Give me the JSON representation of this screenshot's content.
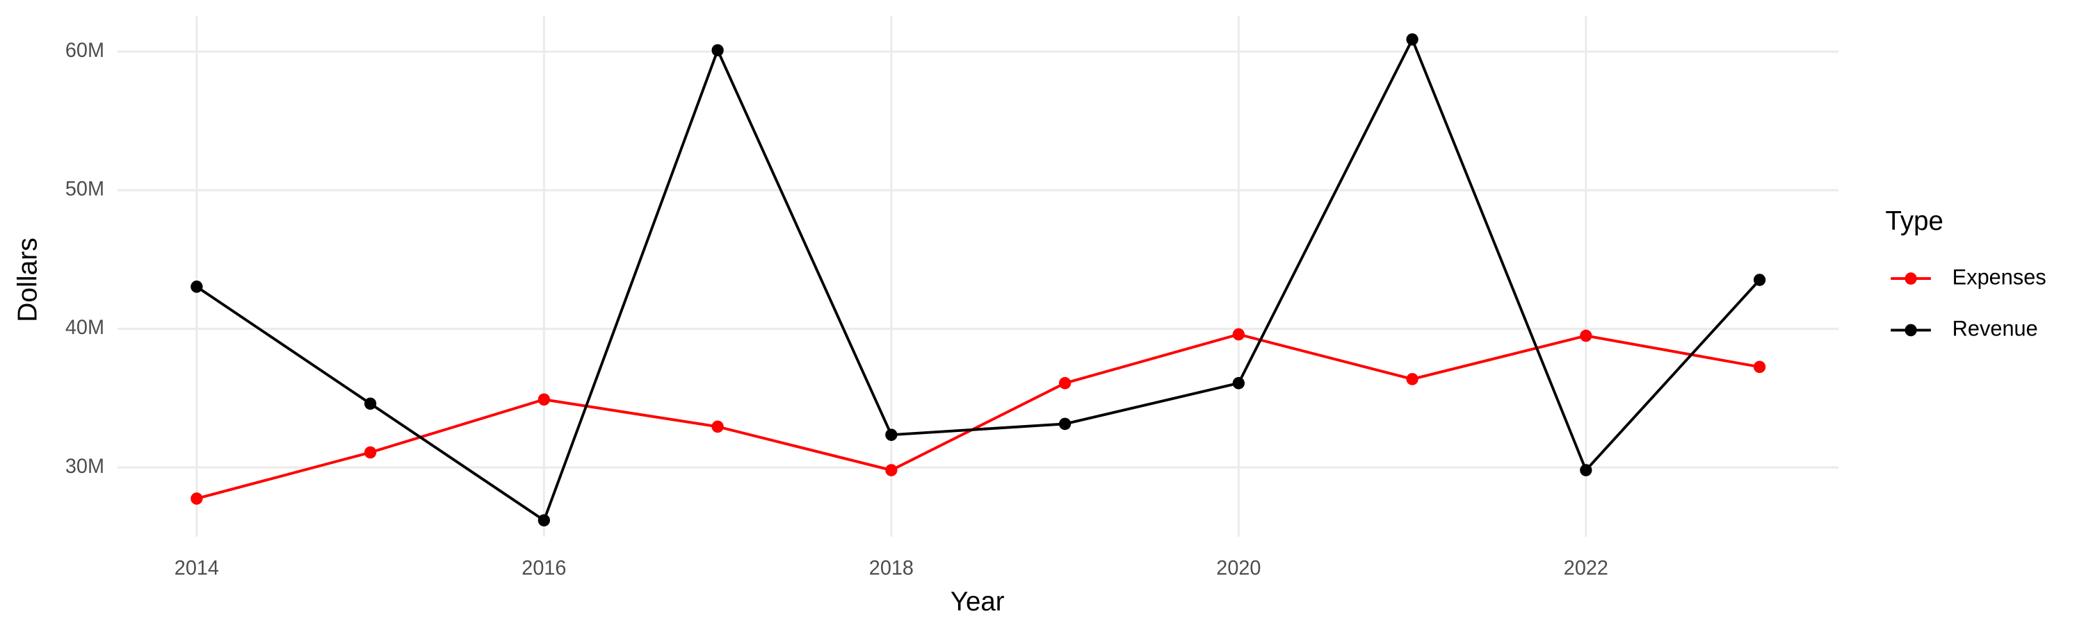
{
  "chart_data": {
    "type": "line",
    "x_label": "Year",
    "y_label": "Dollars",
    "legend_title": "Type",
    "legend_position": "right",
    "grid": true,
    "x": [
      2014,
      2015,
      2016,
      2017,
      2018,
      2019,
      2020,
      2021,
      2022,
      2023
    ],
    "xlim": [
      2013.545,
      2023.455
    ],
    "xticks": [
      2014,
      2016,
      2018,
      2020,
      2022
    ],
    "ylim": [
      25000000,
      62550000
    ],
    "yticks": [
      {
        "value": 30000000,
        "label": "30M"
      },
      {
        "value": 40000000,
        "label": "40M"
      },
      {
        "value": 50000000,
        "label": "50M"
      },
      {
        "value": 60000000,
        "label": "60M"
      }
    ],
    "series": [
      {
        "name": "Expenses",
        "color": "#ff0000",
        "values": [
          27750000,
          31080000,
          34900000,
          32940000,
          29800000,
          36080000,
          39600000,
          36370000,
          39500000,
          37250000
        ]
      },
      {
        "name": "Revenue",
        "color": "#000000",
        "values": [
          43040000,
          34600000,
          26180000,
          60100000,
          32350000,
          33140000,
          36080000,
          60880000,
          29800000,
          43530000
        ]
      }
    ]
  }
}
